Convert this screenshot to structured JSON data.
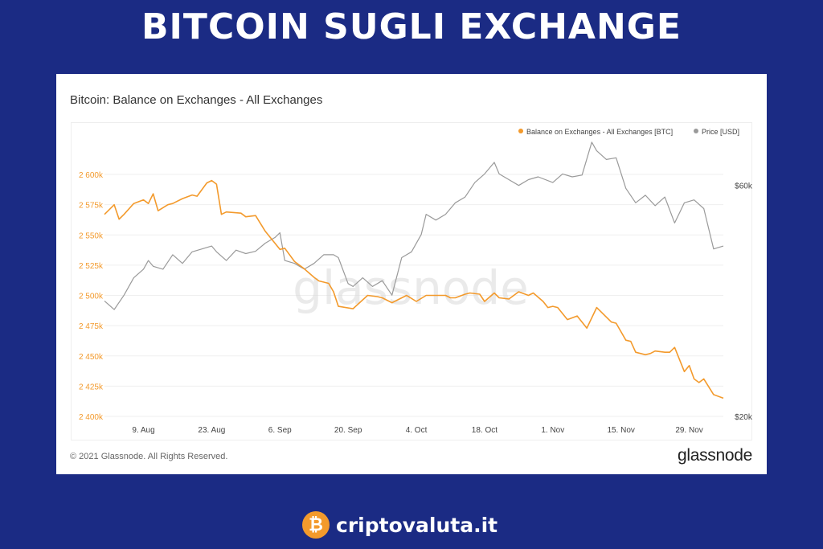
{
  "headline": "BITCOIN SUGLI EXCHANGE",
  "card": {
    "title": "Bitcoin: Balance on Exchanges - All Exchanges",
    "copyright": "© 2021 Glassnode. All Rights Reserved.",
    "logo_text": "glassnode",
    "watermark": "glassnode"
  },
  "brand": {
    "coin_glyph": "₿",
    "name": "criptovaluta.it"
  },
  "colors": {
    "page_background": "#1b2b84",
    "balance": "#f39a2c",
    "price": "#9a9a9a"
  },
  "chart_data": {
    "type": "line",
    "title": "Bitcoin: Balance on Exchanges - All Exchanges",
    "x_tick_labels": [
      "9. Aug",
      "23. Aug",
      "6. Sep",
      "20. Sep",
      "4. Oct",
      "18. Oct",
      "1. Nov",
      "15. Nov",
      "29. Nov"
    ],
    "x_ticks": [
      "2021-08-09",
      "2021-08-23",
      "2021-09-06",
      "2021-09-20",
      "2021-10-04",
      "2021-10-18",
      "2021-11-01",
      "2021-11-15",
      "2021-11-29"
    ],
    "x_range": [
      "2021-08-01",
      "2021-12-06"
    ],
    "y_left": {
      "ticks": [
        2400000,
        2425000,
        2450000,
        2475000,
        2500000,
        2525000,
        2550000,
        2575000,
        2600000
      ],
      "tick_labels": [
        "2 400k",
        "2 425k",
        "2 450k",
        "2 475k",
        "2 500k",
        "2 525k",
        "2 550k",
        "2 575k",
        "2 600k"
      ],
      "range": [
        2400000,
        2610000
      ]
    },
    "y_right": {
      "ticks": [
        20000,
        60000
      ],
      "tick_labels": [
        "$20k",
        "$60k"
      ],
      "range": [
        20000,
        64000
      ]
    },
    "legend_position": "top-right",
    "grid": true,
    "series": [
      {
        "name": "Balance on Exchanges - All Exchanges [BTC]",
        "axis": "left",
        "color": "#f39a2c",
        "x": [
          "2021-08-01",
          "2021-08-03",
          "2021-08-04",
          "2021-08-05",
          "2021-08-07",
          "2021-08-09",
          "2021-08-10",
          "2021-08-11",
          "2021-08-12",
          "2021-08-14",
          "2021-08-15",
          "2021-08-17",
          "2021-08-19",
          "2021-08-20",
          "2021-08-22",
          "2021-08-23",
          "2021-08-24",
          "2021-08-25",
          "2021-08-26",
          "2021-08-29",
          "2021-08-30",
          "2021-09-01",
          "2021-09-03",
          "2021-09-06",
          "2021-09-07",
          "2021-09-09",
          "2021-09-11",
          "2021-09-13",
          "2021-09-14",
          "2021-09-16",
          "2021-09-17",
          "2021-09-18",
          "2021-09-21",
          "2021-09-24",
          "2021-09-26",
          "2021-09-27",
          "2021-09-29",
          "2021-10-02",
          "2021-10-04",
          "2021-10-06",
          "2021-10-08",
          "2021-10-10",
          "2021-10-11",
          "2021-10-12",
          "2021-10-14",
          "2021-10-15",
          "2021-10-17",
          "2021-10-18",
          "2021-10-20",
          "2021-10-21",
          "2021-10-23",
          "2021-10-25",
          "2021-10-27",
          "2021-10-28",
          "2021-10-30",
          "2021-10-31",
          "2021-11-01",
          "2021-11-02",
          "2021-11-04",
          "2021-11-06",
          "2021-11-08",
          "2021-11-10",
          "2021-11-13",
          "2021-11-14",
          "2021-11-16",
          "2021-11-17",
          "2021-11-18",
          "2021-11-20",
          "2021-11-21",
          "2021-11-22",
          "2021-11-24",
          "2021-11-25",
          "2021-11-26",
          "2021-11-28",
          "2021-11-29",
          "2021-11-30",
          "2021-12-01",
          "2021-12-02",
          "2021-12-04",
          "2021-12-06"
        ],
        "y": [
          2567000,
          2575000,
          2563000,
          2567000,
          2576000,
          2579000,
          2576000,
          2584000,
          2570000,
          2575000,
          2576000,
          2580000,
          2583000,
          2582000,
          2593000,
          2595000,
          2592000,
          2567000,
          2569000,
          2568000,
          2565000,
          2566000,
          2553000,
          2538000,
          2539000,
          2528000,
          2522000,
          2515000,
          2512000,
          2510000,
          2503000,
          2491000,
          2489000,
          2500000,
          2499000,
          2498000,
          2494000,
          2500000,
          2495000,
          2500000,
          2500000,
          2500000,
          2498000,
          2498000,
          2501000,
          2502000,
          2501000,
          2495000,
          2502000,
          2498000,
          2497000,
          2503000,
          2500000,
          2502000,
          2495000,
          2490000,
          2491000,
          2490000,
          2480000,
          2483000,
          2473000,
          2490000,
          2478000,
          2477000,
          2463000,
          2462000,
          2453000,
          2451000,
          2452000,
          2454000,
          2453000,
          2453000,
          2457000,
          2437000,
          2442000,
          2431000,
          2428000,
          2431000,
          2418000,
          2415000
        ]
      },
      {
        "name": "Price [USD]",
        "axis": "right",
        "color": "#9a9a9a",
        "x": [
          "2021-08-01",
          "2021-08-03",
          "2021-08-05",
          "2021-08-07",
          "2021-08-09",
          "2021-08-10",
          "2021-08-11",
          "2021-08-13",
          "2021-08-15",
          "2021-08-17",
          "2021-08-19",
          "2021-08-21",
          "2021-08-23",
          "2021-08-24",
          "2021-08-26",
          "2021-08-28",
          "2021-08-30",
          "2021-09-01",
          "2021-09-03",
          "2021-09-05",
          "2021-09-06",
          "2021-09-07",
          "2021-09-09",
          "2021-09-11",
          "2021-09-13",
          "2021-09-15",
          "2021-09-17",
          "2021-09-18",
          "2021-09-20",
          "2021-09-21",
          "2021-09-23",
          "2021-09-25",
          "2021-09-27",
          "2021-09-29",
          "2021-10-01",
          "2021-10-03",
          "2021-10-05",
          "2021-10-06",
          "2021-10-08",
          "2021-10-10",
          "2021-10-12",
          "2021-10-14",
          "2021-10-16",
          "2021-10-18",
          "2021-10-20",
          "2021-10-21",
          "2021-10-23",
          "2021-10-25",
          "2021-10-27",
          "2021-10-29",
          "2021-11-01",
          "2021-11-03",
          "2021-11-05",
          "2021-11-07",
          "2021-11-09",
          "2021-11-10",
          "2021-11-12",
          "2021-11-14",
          "2021-11-16",
          "2021-11-18",
          "2021-11-20",
          "2021-11-22",
          "2021-11-24",
          "2021-11-26",
          "2021-11-28",
          "2021-11-30",
          "2021-12-02",
          "2021-12-04",
          "2021-12-06"
        ],
        "y": [
          40000,
          38500,
          41000,
          44000,
          45500,
          47000,
          46000,
          45500,
          48000,
          46500,
          48500,
          49000,
          49500,
          48500,
          47000,
          48800,
          48200,
          48600,
          50000,
          51000,
          51800,
          47000,
          46500,
          45500,
          46500,
          48000,
          48000,
          47500,
          43000,
          42500,
          44000,
          42500,
          43500,
          41000,
          47500,
          48500,
          51500,
          55000,
          54000,
          55000,
          57000,
          58000,
          60500,
          62000,
          64000,
          62000,
          61000,
          60000,
          61000,
          61500,
          60500,
          62000,
          61500,
          61800,
          67500,
          66000,
          64500,
          64800,
          59500,
          57000,
          58300,
          56500,
          58000,
          53500,
          57000,
          57500,
          56000,
          49000,
          49500
        ]
      }
    ]
  }
}
